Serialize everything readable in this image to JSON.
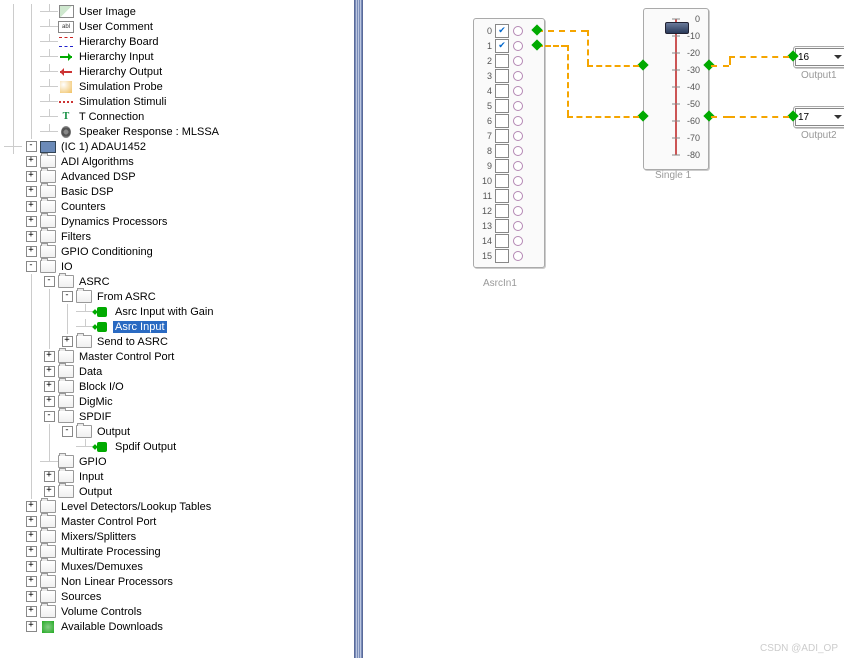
{
  "tree": {
    "top_items": [
      {
        "label": "User Image",
        "icon": "img"
      },
      {
        "label": "User Comment",
        "icon": "abc"
      },
      {
        "label": "Hierarchy Board",
        "icon": "hb"
      },
      {
        "label": "Hierarchy Input",
        "icon": "hi"
      },
      {
        "label": "Hierarchy Output",
        "icon": "ho"
      },
      {
        "label": "Simulation Probe",
        "icon": "probe"
      },
      {
        "label": "Simulation Stimuli",
        "icon": "stim"
      },
      {
        "label": "T Connection",
        "icon": "t"
      },
      {
        "label": "Speaker Response : MLSSA",
        "icon": "spk"
      }
    ],
    "ic_label": "(IC 1) ADAU1452",
    "ic_children": [
      {
        "label": "ADI Algorithms",
        "exp": "+"
      },
      {
        "label": "Advanced DSP",
        "exp": "+"
      },
      {
        "label": "Basic DSP",
        "exp": "+"
      },
      {
        "label": "Counters",
        "exp": "+"
      },
      {
        "label": "Dynamics Processors",
        "exp": "+"
      },
      {
        "label": "Filters",
        "exp": "+"
      },
      {
        "label": "GPIO Conditioning",
        "exp": "+"
      }
    ],
    "io_label": "IO",
    "asrc_label": "ASRC",
    "from_asrc_label": "From ASRC",
    "asrc_leaves": [
      {
        "label": "Asrc Input with Gain",
        "sel": false
      },
      {
        "label": "Asrc Input",
        "sel": true
      }
    ],
    "send_asrc_label": "Send to ASRC",
    "io_rest": [
      {
        "label": "Master Control Port",
        "exp": "+"
      },
      {
        "label": "Data",
        "exp": "+"
      },
      {
        "label": "Block I/O",
        "exp": "+"
      },
      {
        "label": "DigMic",
        "exp": "+"
      }
    ],
    "spdif_label": "SPDIF",
    "spdif_output_label": "Output",
    "spdif_leaf": "Spdif Output",
    "io_tail": [
      {
        "label": "GPIO",
        "exp": ""
      },
      {
        "label": "Input",
        "exp": "+"
      },
      {
        "label": "Output",
        "exp": "+"
      }
    ],
    "ic_tail": [
      {
        "label": "Level Detectors/Lookup Tables",
        "exp": "+"
      },
      {
        "label": "Master Control Port",
        "exp": "+"
      },
      {
        "label": "Mixers/Splitters",
        "exp": "+"
      },
      {
        "label": "Multirate Processing",
        "exp": "+"
      },
      {
        "label": "Muxes/Demuxes",
        "exp": "+"
      },
      {
        "label": "Non Linear Processors",
        "exp": "+"
      },
      {
        "label": "Sources",
        "exp": "+"
      },
      {
        "label": "Volume Controls",
        "exp": "+"
      },
      {
        "label": "Available Downloads",
        "exp": "+",
        "icon": "dl"
      }
    ]
  },
  "canvas": {
    "asrc": {
      "name": "AsrcIn1",
      "channels": [
        0,
        1,
        2,
        3,
        4,
        5,
        6,
        7,
        8,
        9,
        10,
        11,
        12,
        13,
        14,
        15
      ],
      "checked": [
        0,
        1
      ]
    },
    "slider": {
      "name": "Single 1",
      "ticks": [
        0,
        -10,
        -20,
        -30,
        -40,
        -50,
        -60,
        -70,
        -80
      ],
      "ylim": [
        0,
        -80
      ],
      "thumb_value": -5,
      "out_ports": [
        -30,
        -60
      ],
      "track_color": "#c55",
      "thumb_color": "#2a3a5a"
    },
    "outputs": [
      {
        "name": "Output1",
        "value": "16",
        "y": 46
      },
      {
        "name": "Output2",
        "value": "17",
        "y": 106
      }
    ],
    "wire_color": "#f5a500"
  },
  "watermark": "CSDN @ADI_OP"
}
